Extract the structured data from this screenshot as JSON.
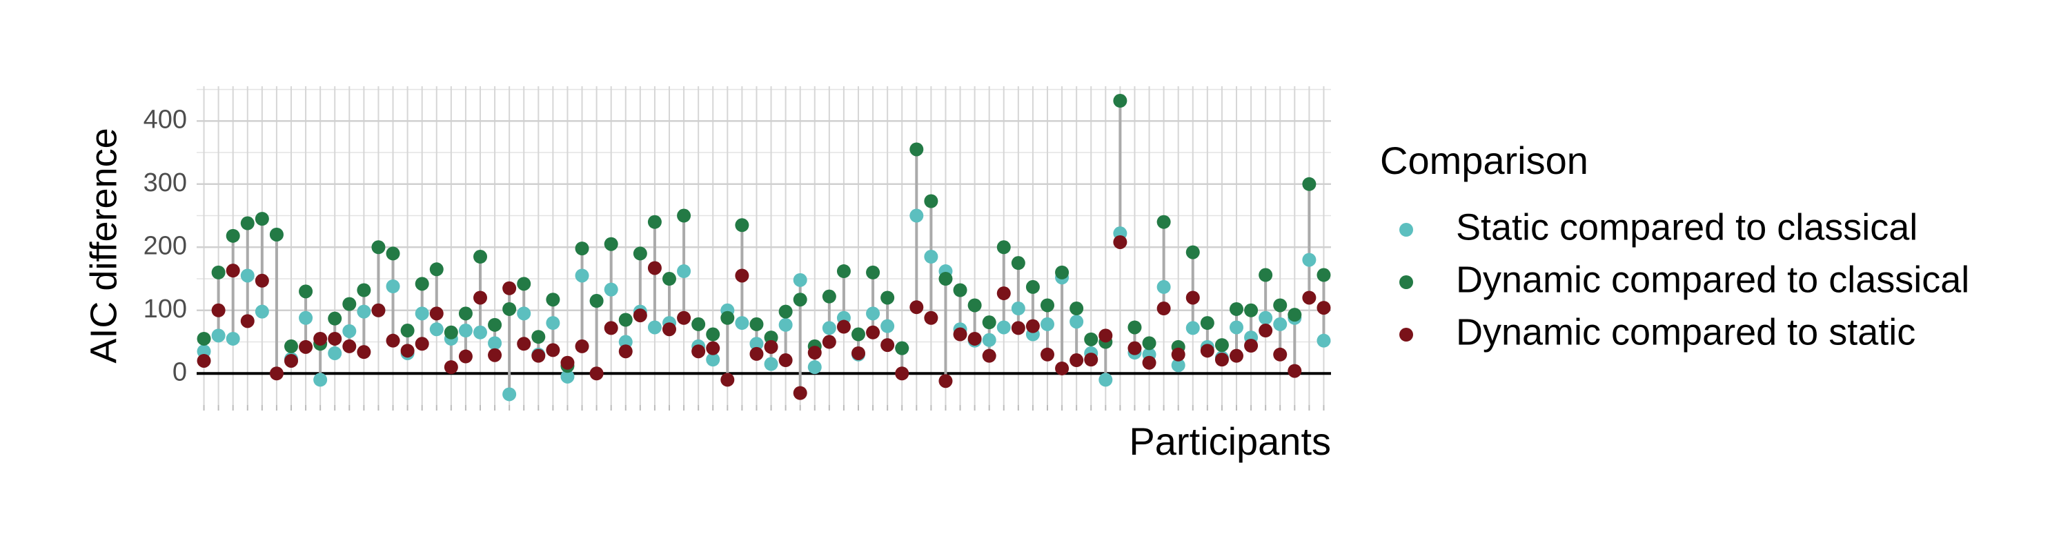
{
  "chart_data": {
    "type": "dot",
    "y_label": "AIC difference",
    "x_label": "Participants",
    "legend_title": "Comparison",
    "legend": "right",
    "grid": true,
    "ylim": [
      -50,
      455
    ],
    "yticks": [
      0,
      100,
      200,
      300,
      400
    ],
    "categories": [
      null,
      null,
      null,
      null,
      null,
      null,
      null,
      null,
      null,
      null,
      null,
      null,
      null,
      null,
      null,
      null,
      null,
      null,
      null,
      null,
      null,
      null,
      null,
      null,
      null,
      null,
      null,
      null,
      null,
      null,
      null,
      null,
      null,
      null,
      null,
      null,
      null,
      null,
      null,
      null,
      null,
      null,
      null,
      null,
      null,
      null,
      null,
      null,
      null,
      null,
      null,
      null,
      null,
      null,
      null,
      null,
      null,
      null,
      null,
      null,
      null,
      null,
      null,
      null,
      null,
      null,
      null,
      null,
      null,
      null,
      null,
      null,
      null,
      null,
      null,
      null,
      null,
      null
    ],
    "series": [
      {
        "name": "Static compared to classical",
        "color": "#5cbfbf",
        "values": [
          35,
          60,
          55,
          155,
          98,
          220,
          23,
          88,
          -10,
          32,
          67,
          98,
          100,
          138,
          32,
          95,
          70,
          55,
          68,
          65,
          48,
          -33,
          95,
          30,
          80,
          -5,
          155,
          115,
          133,
          50,
          98,
          73,
          80,
          162,
          43,
          22,
          100,
          80,
          47,
          15,
          77,
          148,
          10,
          72,
          88,
          30,
          95,
          75,
          40,
          250,
          185,
          162,
          70,
          52,
          53,
          73,
          103,
          62,
          78,
          152,
          82,
          32,
          -10,
          222,
          33,
          30,
          137,
          13,
          72,
          42,
          25,
          73,
          57,
          88,
          78,
          88,
          180,
          52
        ]
      },
      {
        "name": "Dynamic compared to classical",
        "color": "#237a45",
        "values": [
          55,
          160,
          218,
          238,
          245,
          220,
          43,
          130,
          47,
          87,
          110,
          132,
          200,
          190,
          68,
          142,
          165,
          65,
          95,
          185,
          77,
          102,
          142,
          58,
          117,
          12,
          198,
          115,
          205,
          85,
          190,
          240,
          150,
          250,
          78,
          62,
          88,
          235,
          78,
          57,
          98,
          117,
          43,
          122,
          162,
          62,
          160,
          120,
          40,
          355,
          273,
          150,
          132,
          108,
          81,
          200,
          175,
          137,
          108,
          160,
          103,
          54,
          50,
          432,
          73,
          48,
          240,
          42,
          192,
          80,
          45,
          102,
          100,
          156,
          108,
          93,
          300,
          156
        ]
      },
      {
        "name": "Dynamic compared to static",
        "color": "#7a1219",
        "values": [
          20,
          100,
          163,
          83,
          147,
          0,
          20,
          42,
          55,
          55,
          43,
          34,
          100,
          52,
          36,
          47,
          95,
          10,
          27,
          120,
          29,
          135,
          47,
          28,
          37,
          17,
          43,
          0,
          72,
          35,
          92,
          167,
          70,
          88,
          35,
          40,
          -10,
          155,
          31,
          42,
          21,
          -31,
          33,
          50,
          74,
          32,
          65,
          45,
          0,
          105,
          88,
          -12,
          62,
          55,
          28,
          127,
          72,
          75,
          30,
          8,
          21,
          22,
          60,
          208,
          40,
          17,
          103,
          30,
          120,
          36,
          22,
          28,
          44,
          68,
          30,
          4,
          120,
          104
        ]
      }
    ]
  }
}
